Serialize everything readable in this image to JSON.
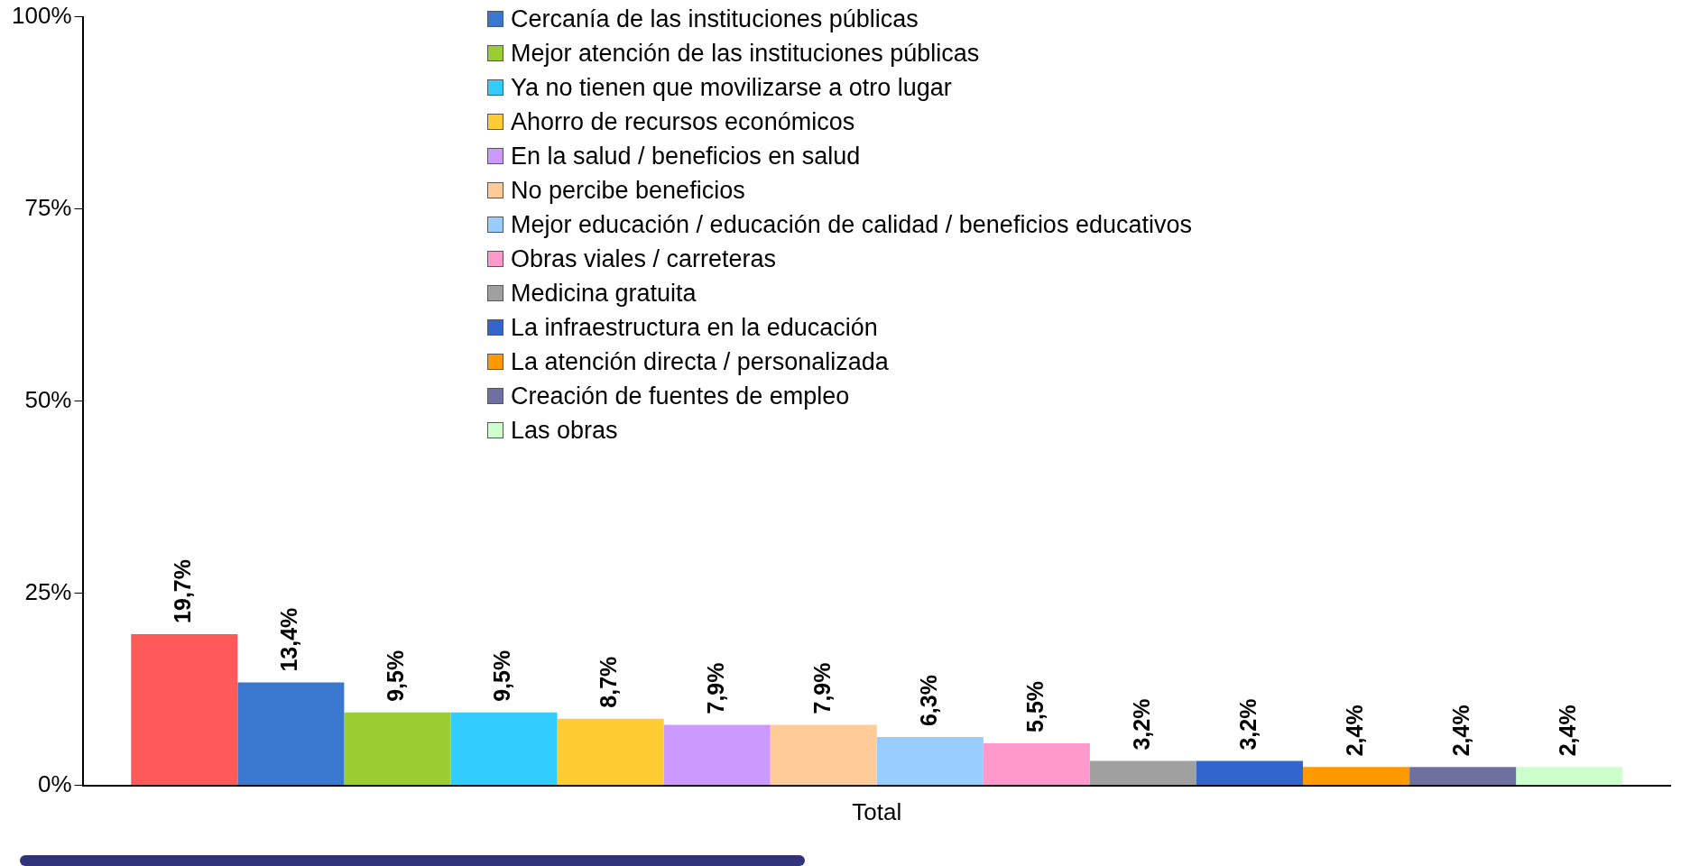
{
  "chart_data": {
    "type": "bar",
    "categories": [
      "Total"
    ],
    "series": [
      {
        "color": "#ff5a5a",
        "values": [
          19.7
        ],
        "value_labels": [
          "19,7%"
        ]
      },
      {
        "name": "Cercanía de las instituciones públicas",
        "color": "#3a78d0",
        "values": [
          13.4
        ],
        "value_labels": [
          "13,4%"
        ]
      },
      {
        "name": "Mejor atención de las instituciones públicas",
        "color": "#9acd32",
        "values": [
          9.5
        ],
        "value_labels": [
          "9,5%"
        ]
      },
      {
        "name": "Ya no tienen que movilizarse a otro lugar",
        "color": "#33ccff",
        "values": [
          9.5
        ],
        "value_labels": [
          "9,5%"
        ]
      },
      {
        "name": "Ahorro de recursos económicos",
        "color": "#ffcc33",
        "values": [
          8.7
        ],
        "value_labels": [
          "8,7%"
        ]
      },
      {
        "name": "En la salud / beneficios en salud",
        "color": "#cc99ff",
        "values": [
          7.9
        ],
        "value_labels": [
          "7,9%"
        ]
      },
      {
        "name": "No percibe beneficios",
        "color": "#ffcc99",
        "values": [
          7.9
        ],
        "value_labels": [
          "7,9%"
        ]
      },
      {
        "name": "Mejor educación / educación de calidad / beneficios educativos",
        "color": "#99ccff",
        "values": [
          6.3
        ],
        "value_labels": [
          "6,3%"
        ]
      },
      {
        "name": "Obras viales / carreteras",
        "color": "#ff99cc",
        "values": [
          5.5
        ],
        "value_labels": [
          "5,5%"
        ]
      },
      {
        "name": "Medicina gratuita",
        "color": "#a0a0a0",
        "values": [
          3.2
        ],
        "value_labels": [
          "3,2%"
        ]
      },
      {
        "name": "La infraestructura en la educación",
        "color": "#3366cc",
        "values": [
          3.2
        ],
        "value_labels": [
          "3,2%"
        ]
      },
      {
        "name": "La atención directa / personalizada",
        "color": "#ff9900",
        "values": [
          2.4
        ],
        "value_labels": [
          "2,4%"
        ]
      },
      {
        "name": "Creación de fuentes de empleo",
        "color": "#7070a0",
        "values": [
          2.4
        ],
        "value_labels": [
          "2,4%"
        ]
      },
      {
        "name": "Las obras",
        "color": "#ccffcc",
        "values": [
          2.4
        ],
        "value_labels": [
          "2,4%"
        ]
      }
    ],
    "ylim": [
      0,
      100
    ],
    "yticks": [
      {
        "value": 0,
        "label": "0%"
      },
      {
        "value": 25,
        "label": "25%"
      },
      {
        "value": 50,
        "label": "50%"
      },
      {
        "value": 75,
        "label": "75%"
      },
      {
        "value": 100,
        "label": "100%"
      }
    ],
    "legend": "top"
  }
}
